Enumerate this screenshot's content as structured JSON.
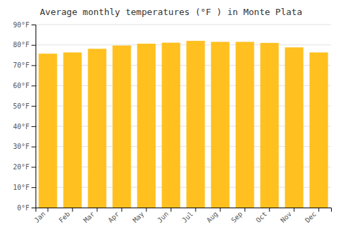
{
  "chart_data": {
    "type": "bar",
    "title": "Average monthly temperatures (°F ) in Monte Plata",
    "categories": [
      "Jan",
      "Feb",
      "Mar",
      "Apr",
      "May",
      "Jun",
      "Jul",
      "Aug",
      "Sep",
      "Oct",
      "Nov",
      "Dec"
    ],
    "values": [
      75.7,
      76.3,
      78.1,
      79.7,
      80.6,
      81.1,
      82.0,
      81.5,
      81.5,
      81.0,
      78.8,
      76.3
    ],
    "color": "#FFC020",
    "ylim": [
      0,
      90
    ],
    "yticks": [
      {
        "value": 0,
        "label": "0°F"
      },
      {
        "value": 10,
        "label": "10°F"
      },
      {
        "value": 20,
        "label": "20°F"
      },
      {
        "value": 30,
        "label": "30°F"
      },
      {
        "value": 40,
        "label": "40°F"
      },
      {
        "value": 50,
        "label": "50°F"
      },
      {
        "value": 60,
        "label": "60°F"
      },
      {
        "value": 70,
        "label": "70°F"
      },
      {
        "value": 80,
        "label": "80°F"
      },
      {
        "value": 90,
        "label": "90°F"
      }
    ],
    "grid": true
  }
}
